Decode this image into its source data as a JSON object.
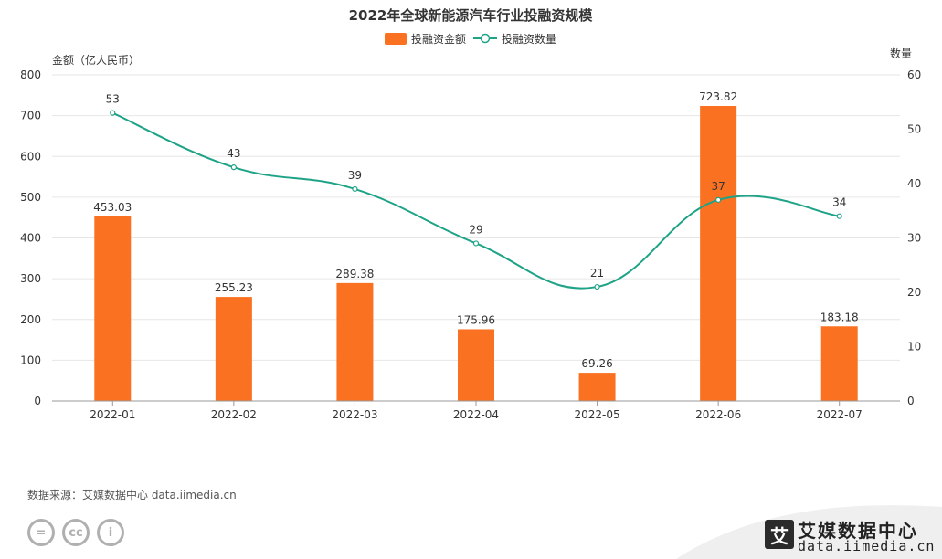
{
  "chart_data": {
    "type": "bar",
    "title": "2022年全球新能源汽车行业投融资规模",
    "categories": [
      "2022-01",
      "2022-02",
      "2022-03",
      "2022-04",
      "2022-05",
      "2022-06",
      "2022-07"
    ],
    "series": [
      {
        "name": "投融资金额",
        "type": "bar",
        "axis": "left",
        "color": "#fa7121",
        "values": [
          453.03,
          255.23,
          289.38,
          175.96,
          69.26,
          723.82,
          183.18
        ]
      },
      {
        "name": "投融资数量",
        "type": "line",
        "smooth": true,
        "axis": "right",
        "color": "#1ea387",
        "values": [
          53,
          43,
          39,
          29,
          21,
          37,
          34
        ]
      }
    ],
    "y_left": {
      "label": "金额（亿人民币）",
      "range": [
        0,
        800
      ],
      "ticks": [
        0,
        100,
        200,
        300,
        400,
        500,
        600,
        700,
        800
      ]
    },
    "y_right": {
      "label": "数量",
      "range": [
        0,
        60
      ],
      "ticks": [
        0,
        10,
        20,
        30,
        40,
        50,
        60
      ]
    },
    "legend_position": "top-center",
    "grid": true
  },
  "footer": {
    "source": "数据来源：艾媒数据中心 data.iimedia.cn",
    "cc_icons": [
      "=",
      "cc",
      "i"
    ]
  },
  "brand": {
    "logo_glyph": "艾",
    "name": "艾媒数据中心",
    "domain": "data.iimedia.cn"
  }
}
